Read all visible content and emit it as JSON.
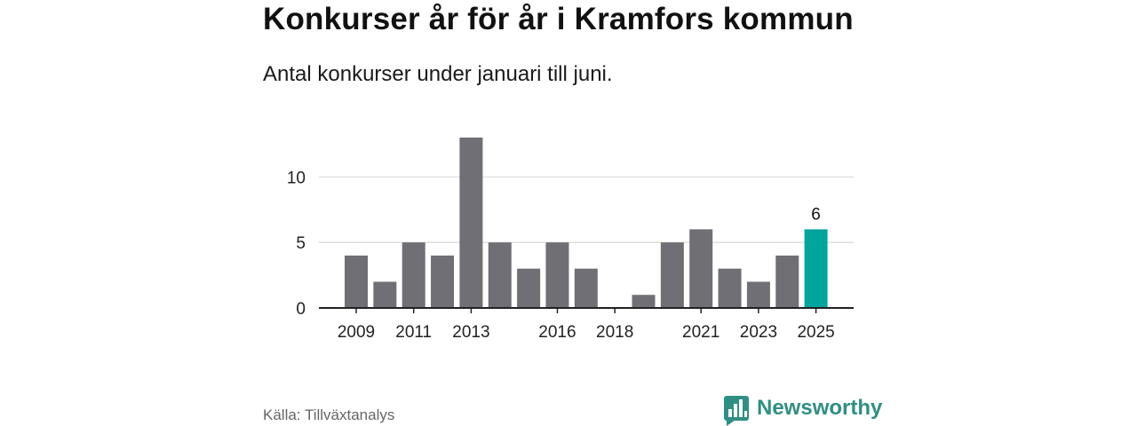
{
  "title": "Konkurser år för år i Kramfors kommun",
  "subtitle": "Antal konkurser under januari till juni.",
  "source": "Källa: Tillväxtanalys",
  "brand": "Newsworthy",
  "brand_icon": "bar-chart-speech-bubble-icon",
  "colors": {
    "bar": "#706f75",
    "highlight": "#00a59b",
    "gridline": "#d9d9d9",
    "axis": "#222222",
    "brand": "#2f8f83"
  },
  "chart_data": {
    "type": "bar",
    "categories": [
      "2009",
      "2010",
      "2011",
      "2012",
      "2013",
      "2014",
      "2015",
      "2016",
      "2017",
      "2018",
      "2019",
      "2020",
      "2021",
      "2022",
      "2023",
      "2024",
      "2025"
    ],
    "values": [
      4,
      2,
      5,
      4,
      13,
      5,
      3,
      5,
      3,
      0,
      1,
      5,
      6,
      3,
      2,
      4,
      6
    ],
    "x_tick_labels": [
      "2009",
      "2011",
      "2013",
      "2016",
      "2018",
      "2021",
      "2023",
      "2025"
    ],
    "y_ticks": [
      0,
      5,
      10
    ],
    "ylim": [
      0,
      13
    ],
    "highlight_category": "2025",
    "data_labels": [
      {
        "category": "2025",
        "text": "6"
      }
    ],
    "grid": true,
    "legend": "none",
    "xlabel": "",
    "ylabel": ""
  }
}
